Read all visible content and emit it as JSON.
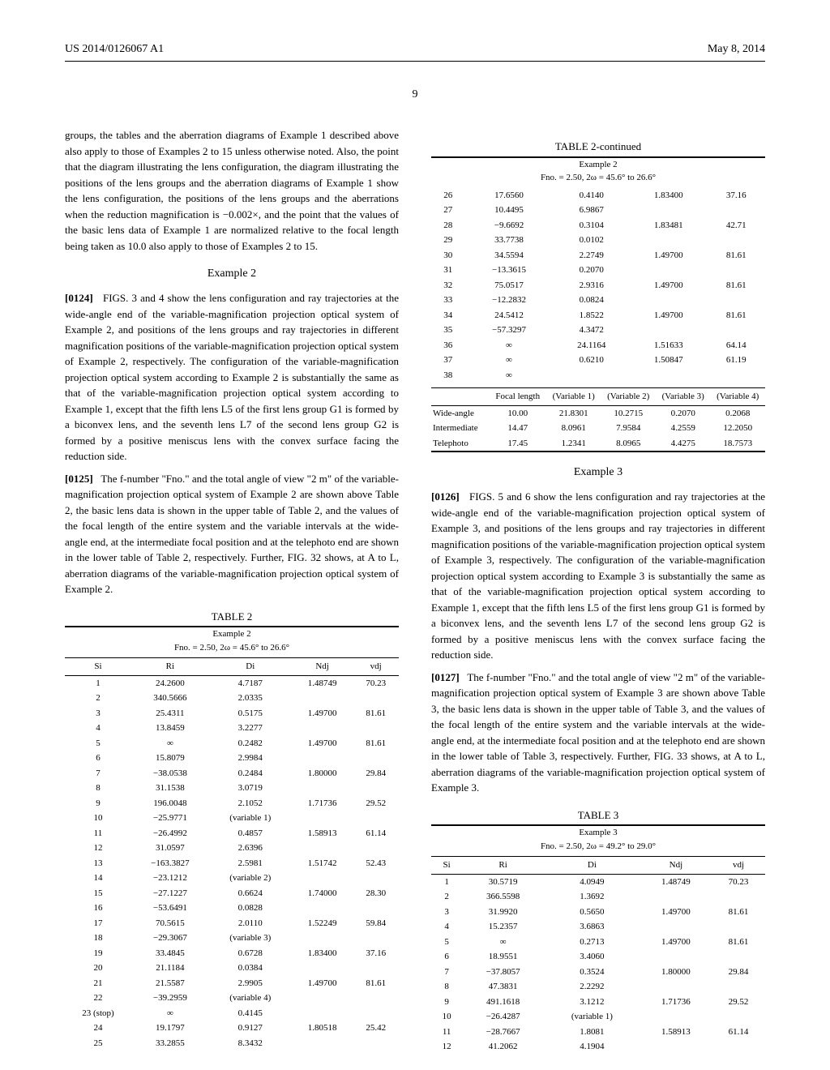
{
  "pub_id": "US 2014/0126067 A1",
  "pub_date": "May 8, 2014",
  "page_number": "9",
  "col_left": {
    "p1": "groups, the tables and the aberration diagrams of Example 1 described above also apply to those of Examples 2 to 15 unless otherwise noted. Also, the point that the diagram illustrating the lens configuration, the diagram illustrating the positions of the lens groups and the aberration diagrams of Example 1 show the lens configuration, the positions of the lens groups and the aberrations when the reduction magnification is −0.002×, and the point that the values of the basic lens data of Example 1 are normalized relative to the focal length being taken as 10.0 also apply to those of Examples 2 to 15.",
    "ex2_title": "Example 2",
    "p2_num": "[0124]",
    "p2": "FIGS. 3 and 4 show the lens configuration and ray trajectories at the wide-angle end of the variable-magnification projection optical system of Example 2, and positions of the lens groups and ray trajectories in different magnification positions of the variable-magnification projection optical system of Example 2, respectively. The configuration of the variable-magnification projection optical system according to Example 2 is substantially the same as that of the variable-magnification projection optical system according to Example 1, except that the fifth lens L5 of the first lens group G1 is formed by a biconvex lens, and the seventh lens L7 of the second lens group G2 is formed by a positive meniscus lens with the convex surface facing the reduction side.",
    "p3_num": "[0125]",
    "p3": "The f-number \"Fno.\" and the total angle of view \"2 m\" of the variable-magnification projection optical system of Example 2 are shown above Table 2, the basic lens data is shown in the upper table of Table 2, and the values of the focal length of the entire system and the variable intervals at the wide-angle end, at the intermediate focal position and at the telephoto end are shown in the lower table of Table 2, respectively. Further, FIG. 32 shows, at A to L, aberration diagrams of the variable-magnification projection optical system of Example 2."
  },
  "col_right": {
    "ex3_title": "Example 3",
    "p4_num": "[0126]",
    "p4": "FIGS. 5 and 6 show the lens configuration and ray trajectories at the wide-angle end of the variable-magnification projection optical system of Example 3, and positions of the lens groups and ray trajectories in different magnification positions of the variable-magnification projection optical system of Example 3, respectively. The configuration of the variable-magnification projection optical system according to Example 3 is substantially the same as that of the variable-magnification projection optical system according to Example 1, except that the fifth lens L5 of the first lens group G1 is formed by a biconvex lens, and the seventh lens L7 of the second lens group G2 is formed by a positive meniscus lens with the convex surface facing the reduction side.",
    "p5_num": "[0127]",
    "p5": "The f-number \"Fno.\" and the total angle of view \"2 m\" of the variable-magnification projection optical system of Example 3 are shown above Table 3, the basic lens data is shown in the upper table of Table 3, and the values of the focal length of the entire system and the variable intervals at the wide-angle end, at the intermediate focal position and at the telephoto end are shown in the lower table of Table 3, respectively. Further, FIG. 33 shows, at A to L, aberration diagrams of the variable-magnification projection optical system of Example 3."
  },
  "table2": {
    "caption": "TABLE 2",
    "subtitle": "Example 2",
    "sub2": "Fno. = 2.50, 2ω = 45.6° to 26.6°",
    "headers": [
      "Si",
      "Ri",
      "Di",
      "Ndj",
      "vdj"
    ],
    "rows": [
      [
        "1",
        "24.2600",
        "4.7187",
        "1.48749",
        "70.23"
      ],
      [
        "2",
        "340.5666",
        "2.0335",
        "",
        ""
      ],
      [
        "3",
        "25.4311",
        "0.5175",
        "1.49700",
        "81.61"
      ],
      [
        "4",
        "13.8459",
        "3.2277",
        "",
        ""
      ],
      [
        "5",
        "∞",
        "0.2482",
        "1.49700",
        "81.61"
      ],
      [
        "6",
        "15.8079",
        "2.9984",
        "",
        ""
      ],
      [
        "7",
        "−38.0538",
        "0.2484",
        "1.80000",
        "29.84"
      ],
      [
        "8",
        "31.1538",
        "3.0719",
        "",
        ""
      ],
      [
        "9",
        "196.0048",
        "2.1052",
        "1.71736",
        "29.52"
      ],
      [
        "10",
        "−25.9771",
        "(variable 1)",
        "",
        ""
      ],
      [
        "11",
        "−26.4992",
        "0.4857",
        "1.58913",
        "61.14"
      ],
      [
        "12",
        "31.0597",
        "2.6396",
        "",
        ""
      ],
      [
        "13",
        "−163.3827",
        "2.5981",
        "1.51742",
        "52.43"
      ],
      [
        "14",
        "−23.1212",
        "(variable 2)",
        "",
        ""
      ],
      [
        "15",
        "−27.1227",
        "0.6624",
        "1.74000",
        "28.30"
      ],
      [
        "16",
        "−53.6491",
        "0.0828",
        "",
        ""
      ],
      [
        "17",
        "70.5615",
        "2.0110",
        "1.52249",
        "59.84"
      ],
      [
        "18",
        "−29.3067",
        "(variable 3)",
        "",
        ""
      ],
      [
        "19",
        "33.4845",
        "0.6728",
        "1.83400",
        "37.16"
      ],
      [
        "20",
        "21.1184",
        "0.0384",
        "",
        ""
      ],
      [
        "21",
        "21.5587",
        "2.9905",
        "1.49700",
        "81.61"
      ],
      [
        "22",
        "−39.2959",
        "(variable 4)",
        "",
        ""
      ],
      [
        "23 (stop)",
        "∞",
        "0.4145",
        "",
        ""
      ],
      [
        "24",
        "19.1797",
        "0.9127",
        "1.80518",
        "25.42"
      ],
      [
        "25",
        "33.2855",
        "8.3432",
        "",
        ""
      ]
    ]
  },
  "table2_cont": {
    "caption": "TABLE 2-continued",
    "subtitle": "Example 2",
    "sub2": "Fno. = 2.50, 2ω = 45.6° to 26.6°",
    "rows": [
      [
        "26",
        "17.6560",
        "0.4140",
        "1.83400",
        "37.16"
      ],
      [
        "27",
        "10.4495",
        "6.9867",
        "",
        ""
      ],
      [
        "28",
        "−9.6692",
        "0.3104",
        "1.83481",
        "42.71"
      ],
      [
        "29",
        "33.7738",
        "0.0102",
        "",
        ""
      ],
      [
        "30",
        "34.5594",
        "2.2749",
        "1.49700",
        "81.61"
      ],
      [
        "31",
        "−13.3615",
        "0.2070",
        "",
        ""
      ],
      [
        "32",
        "75.0517",
        "2.9316",
        "1.49700",
        "81.61"
      ],
      [
        "33",
        "−12.2832",
        "0.0824",
        "",
        ""
      ],
      [
        "34",
        "24.5412",
        "1.8522",
        "1.49700",
        "81.61"
      ],
      [
        "35",
        "−57.3297",
        "4.3472",
        "",
        ""
      ],
      [
        "36",
        "∞",
        "24.1164",
        "1.51633",
        "64.14"
      ],
      [
        "37",
        "∞",
        "0.6210",
        "1.50847",
        "61.19"
      ],
      [
        "38",
        "∞",
        "",
        "",
        ""
      ]
    ],
    "zoom_headers": [
      "",
      "Focal length",
      "(Variable 1)",
      "(Variable 2)",
      "(Variable 3)",
      "(Variable 4)"
    ],
    "zoom_rows": [
      [
        "Wide-angle",
        "10.00",
        "21.8301",
        "10.2715",
        "0.2070",
        "0.2068"
      ],
      [
        "Intermediate",
        "14.47",
        "8.0961",
        "7.9584",
        "4.2559",
        "12.2050"
      ],
      [
        "Telephoto",
        "17.45",
        "1.2341",
        "8.0965",
        "4.4275",
        "18.7573"
      ]
    ]
  },
  "table3": {
    "caption": "TABLE 3",
    "subtitle": "Example 3",
    "sub2": "Fno. = 2.50, 2ω = 49.2° to 29.0°",
    "headers": [
      "Si",
      "Ri",
      "Di",
      "Ndj",
      "vdj"
    ],
    "rows": [
      [
        "1",
        "30.5719",
        "4.0949",
        "1.48749",
        "70.23"
      ],
      [
        "2",
        "366.5598",
        "1.3692",
        "",
        ""
      ],
      [
        "3",
        "31.9920",
        "0.5650",
        "1.49700",
        "81.61"
      ],
      [
        "4",
        "15.2357",
        "3.6863",
        "",
        ""
      ],
      [
        "5",
        "∞",
        "0.2713",
        "1.49700",
        "81.61"
      ],
      [
        "6",
        "18.9551",
        "3.4060",
        "",
        ""
      ],
      [
        "7",
        "−37.8057",
        "0.3524",
        "1.80000",
        "29.84"
      ],
      [
        "8",
        "47.3831",
        "2.2292",
        "",
        ""
      ],
      [
        "9",
        "491.1618",
        "3.1212",
        "1.71736",
        "29.52"
      ],
      [
        "10",
        "−26.4287",
        "(variable 1)",
        "",
        ""
      ],
      [
        "11",
        "−28.7667",
        "1.8081",
        "1.58913",
        "61.14"
      ],
      [
        "12",
        "41.2062",
        "4.1904",
        "",
        ""
      ]
    ]
  }
}
